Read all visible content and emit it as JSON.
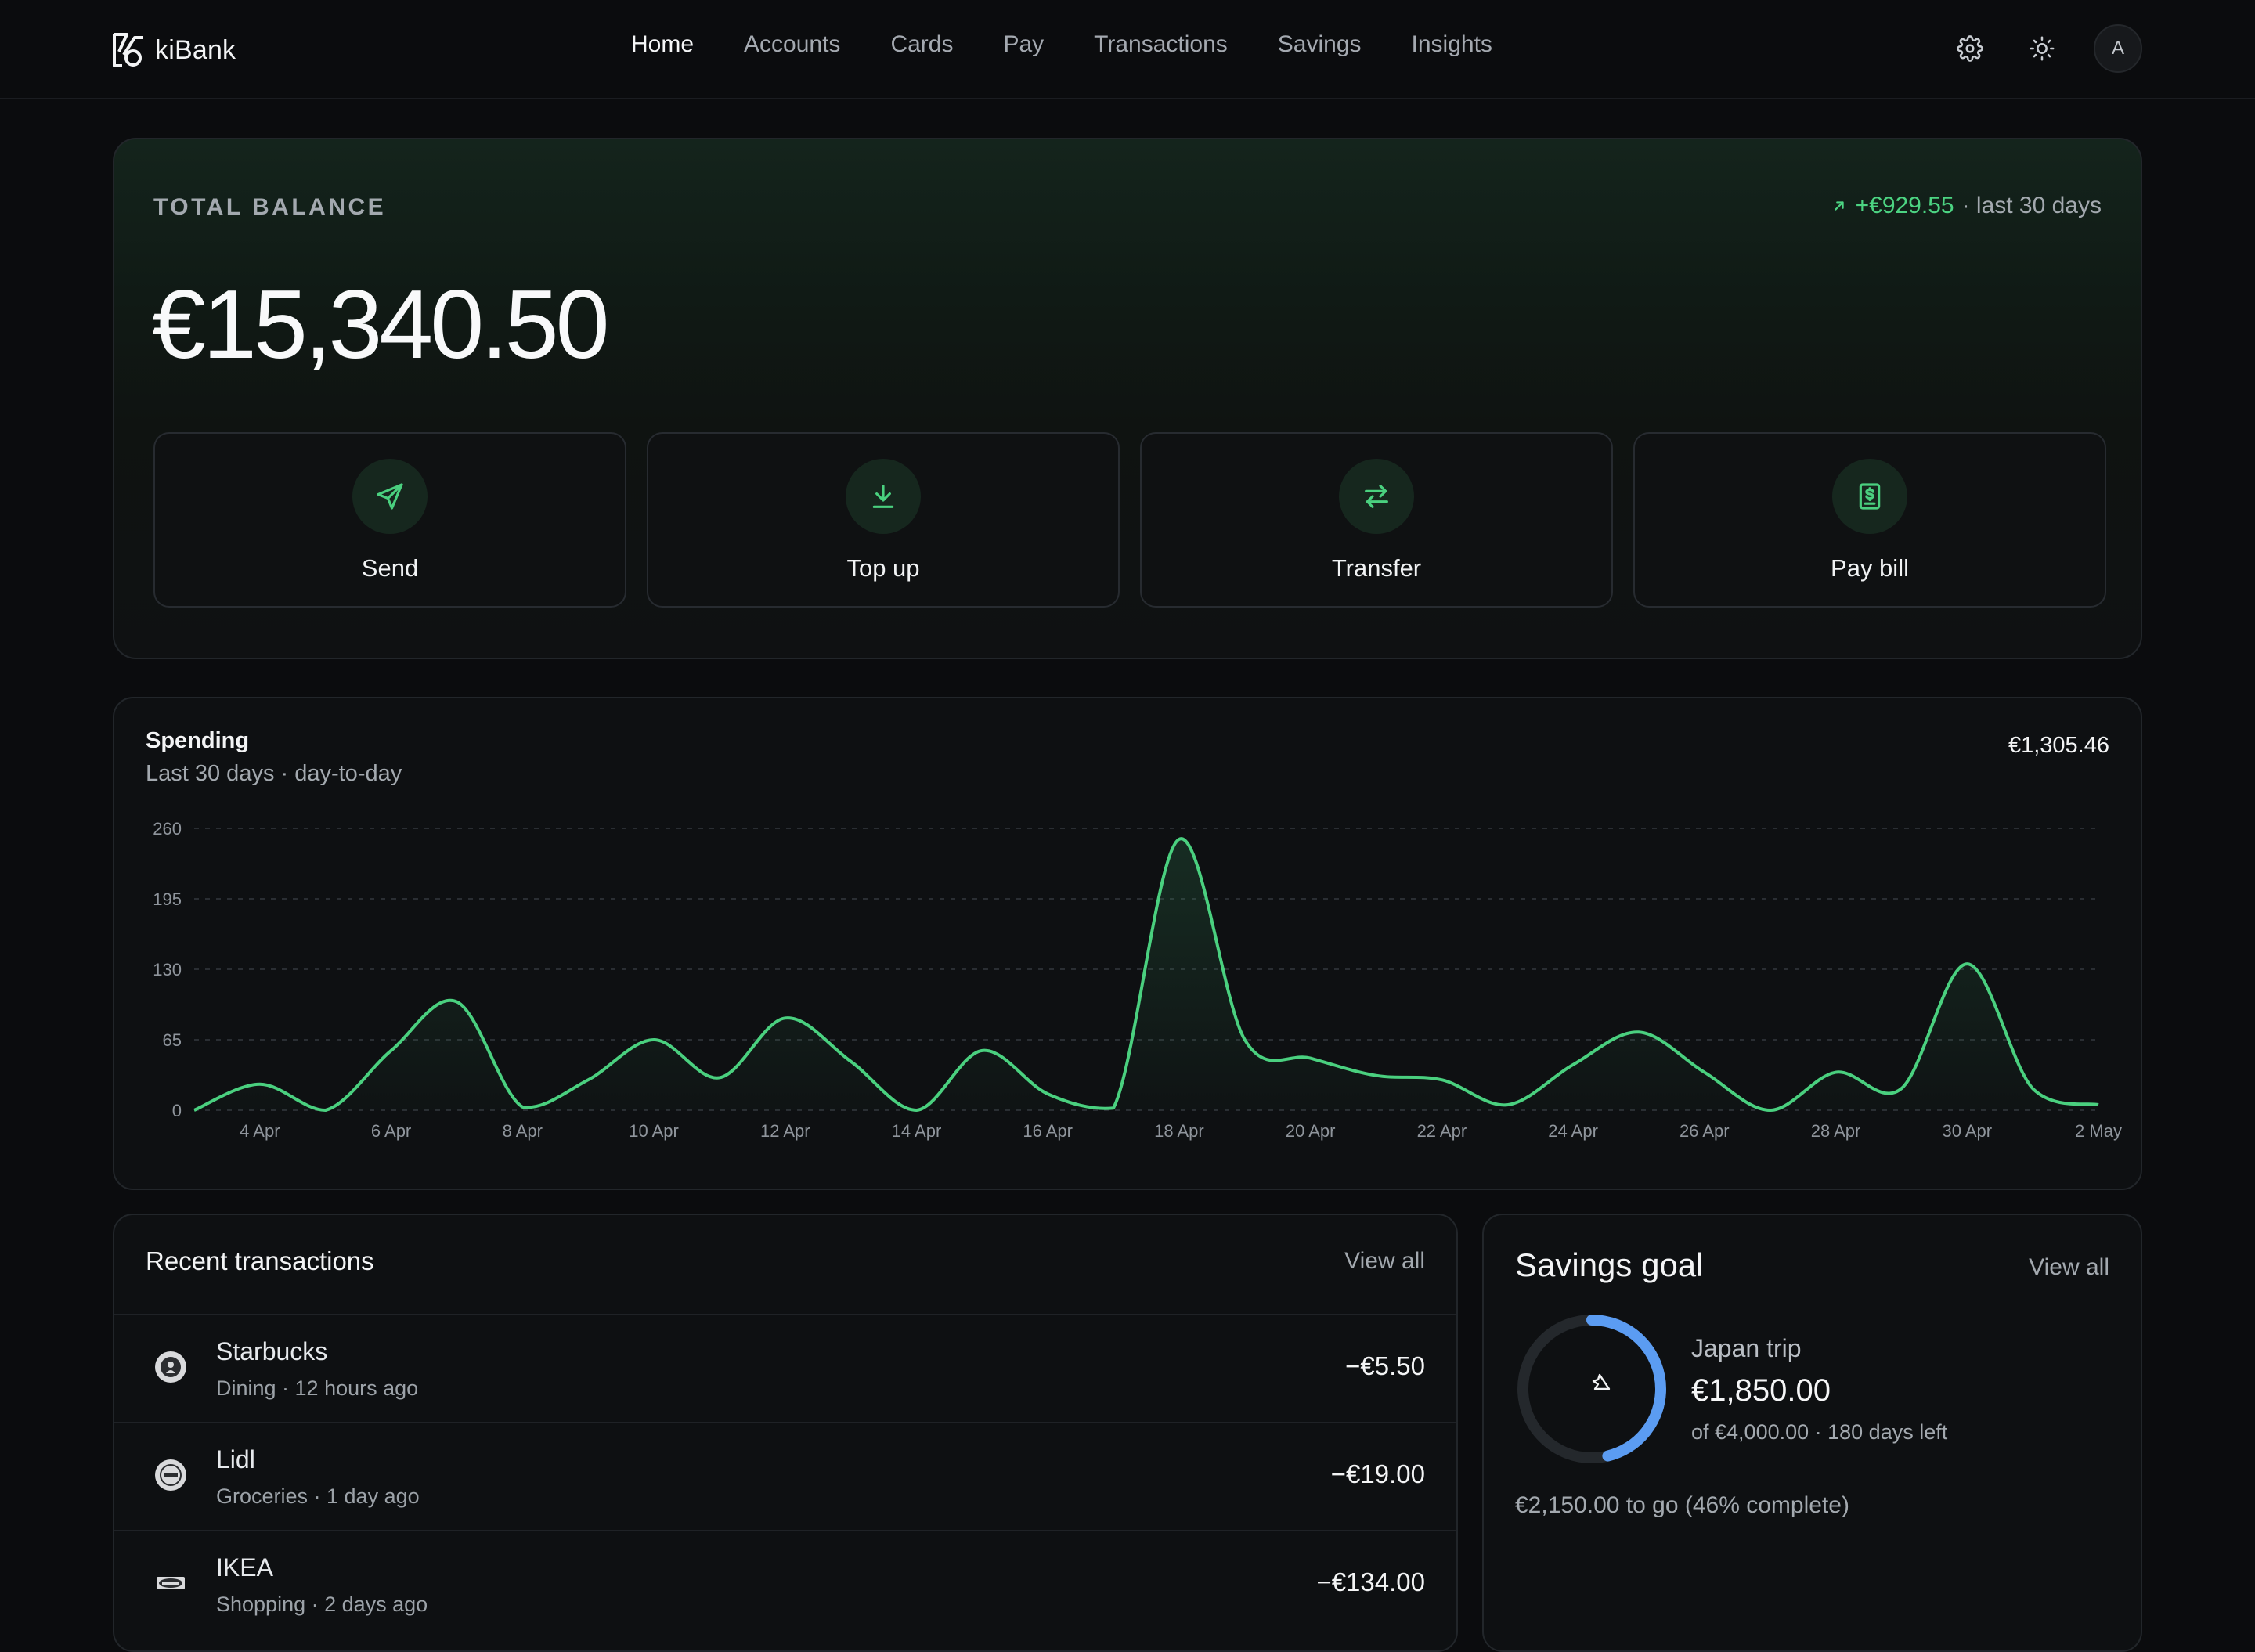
{
  "app": {
    "name": "kiBank"
  },
  "nav": [
    "Home",
    "Accounts",
    "Cards",
    "Pay",
    "Transactions",
    "Savings",
    "Insights"
  ],
  "nav_active": "Home",
  "header": {
    "avatar_initial": "A",
    "settings_icon": "gear-icon",
    "theme_icon": "sun-icon"
  },
  "balance": {
    "label": "TOTAL BALANCE",
    "amount": "€15,340.50",
    "change": "+€929.55",
    "change_period": "· last 30 days"
  },
  "actions": [
    {
      "label": "Send",
      "icon": "send-icon"
    },
    {
      "label": "Top up",
      "icon": "download-icon"
    },
    {
      "label": "Transfer",
      "icon": "transfer-icon"
    },
    {
      "label": "Pay bill",
      "icon": "bill-icon"
    }
  ],
  "spending": {
    "title": "Spending",
    "subtitle": "Last 30 days · day-to-day",
    "total": "€1,305.46"
  },
  "chart_data": {
    "type": "area",
    "title": "Spending",
    "ylim": [
      0,
      260
    ],
    "yticks": [
      0,
      65,
      130,
      195,
      260
    ],
    "grid": true,
    "x": [
      "3 Apr",
      "4 Apr",
      "5 Apr",
      "6 Apr",
      "7 Apr",
      "8 Apr",
      "9 Apr",
      "10 Apr",
      "11 Apr",
      "12 Apr",
      "13 Apr",
      "14 Apr",
      "15 Apr",
      "16 Apr",
      "17 Apr",
      "18 Apr",
      "19 Apr",
      "20 Apr",
      "21 Apr",
      "22 Apr",
      "23 Apr",
      "24 Apr",
      "25 Apr",
      "26 Apr",
      "27 Apr",
      "28 Apr",
      "29 Apr",
      "30 Apr",
      "1 May",
      "2 May"
    ],
    "xtick_labels": [
      "4 Apr",
      "6 Apr",
      "8 Apr",
      "10 Apr",
      "12 Apr",
      "14 Apr",
      "16 Apr",
      "18 Apr",
      "20 Apr",
      "22 Apr",
      "24 Apr",
      "26 Apr",
      "28 Apr",
      "30 Apr",
      "2 May"
    ],
    "series": [
      {
        "values": [
          0,
          24,
          0,
          55,
          100,
          3,
          28,
          65,
          30,
          85,
          45,
          0,
          55,
          15,
          2,
          250,
          65,
          48,
          32,
          28,
          5,
          42,
          72,
          35,
          0,
          35,
          20,
          135,
          20,
          5
        ]
      }
    ],
    "color": "#4ad07f"
  },
  "transactions": {
    "title": "Recent transactions",
    "view_all": "View all",
    "items": [
      {
        "name": "Starbucks",
        "meta": "Dining · 12 hours ago",
        "amount": "−€5.50",
        "logo": "starbucks-logo"
      },
      {
        "name": "Lidl",
        "meta": "Groceries · 1 day ago",
        "amount": "−€19.00",
        "logo": "lidl-logo"
      },
      {
        "name": "IKEA",
        "meta": "Shopping · 2 days ago",
        "amount": "−€134.00",
        "logo": "ikea-logo"
      }
    ]
  },
  "savings": {
    "title": "Savings goal",
    "view_all": "View all",
    "goal_name": "Japan trip",
    "saved": "€1,850.00",
    "meta": "of €4,000.00 · 180 days left",
    "footer": "€2,150.00 to go (46% complete)",
    "progress": 0.4625,
    "icon": "plane-icon",
    "ring_color": "#5b9cf2"
  }
}
